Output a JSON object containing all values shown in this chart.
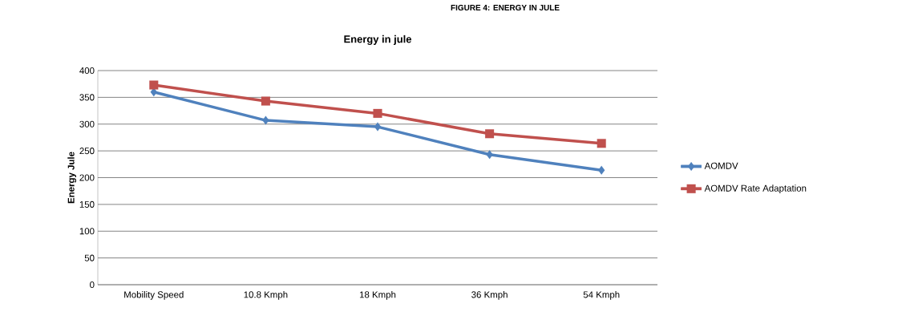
{
  "chart_data": {
    "type": "line",
    "title": "Energy in jule",
    "ylabel": "Energy Jule",
    "annotations": [
      "FIGURE 4: ENERGY IN JULE"
    ],
    "categories": [
      "Mobility Speed",
      "10.8 Kmph",
      "18 Kmph",
      "36 Kmph",
      "54 Kmph"
    ],
    "series": [
      {
        "name": "AOMDV",
        "color": "#4f81bd",
        "marker": "diamond",
        "values": [
          360,
          307,
          295,
          243,
          214
        ]
      },
      {
        "name": "AOMDV Rate Adaptation",
        "color": "#c0504d",
        "marker": "square",
        "values": [
          373,
          343,
          320,
          282,
          264
        ]
      }
    ],
    "ylim": [
      0,
      400
    ],
    "yticks": [
      0,
      50,
      100,
      150,
      200,
      250,
      300,
      350,
      400
    ],
    "grid": "y",
    "legend": "right"
  }
}
